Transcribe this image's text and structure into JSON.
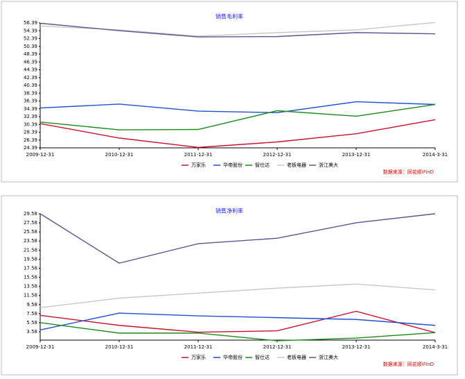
{
  "chart_data": [
    {
      "type": "line",
      "title": "销售毛利率",
      "categories": [
        "2009-12-31",
        "2010-12-31",
        "2011-12-31",
        "2012-12-31",
        "2013-12-31",
        "2014-3-31"
      ],
      "series": [
        {
          "name": "万家乐",
          "color": "#c8102e",
          "values": [
            30.6,
            26.9,
            24.5,
            25.9,
            28.0,
            31.6
          ]
        },
        {
          "name": "华帝股份",
          "color": "#1f4fd1",
          "values": [
            34.6,
            35.6,
            33.8,
            33.4,
            36.2,
            35.5
          ]
        },
        {
          "name": "智仕达",
          "color": "#1a8a1a",
          "values": [
            31.0,
            29.0,
            29.1,
            33.9,
            32.5,
            35.5
          ]
        },
        {
          "name": "老板电器",
          "color": "#c8c8c8",
          "values": [
            55.6,
            54.6,
            53.0,
            53.9,
            54.6,
            56.5
          ]
        },
        {
          "name": "浙江美大",
          "color": "#5a5490",
          "values": [
            56.3,
            54.4,
            52.8,
            52.9,
            53.9,
            53.6
          ]
        }
      ],
      "ylim": [
        24.39,
        56.39
      ],
      "yticks": [
        24.39,
        26.39,
        28.39,
        30.39,
        32.39,
        34.39,
        36.39,
        38.39,
        40.39,
        42.39,
        44.39,
        46.39,
        48.39,
        50.39,
        52.39,
        54.39,
        56.39
      ],
      "note": "数据来源：同花顺iFinD"
    },
    {
      "type": "line",
      "title": "销售净利率",
      "categories": [
        "2009-12-31",
        "2010-12-31",
        "2011-12-31",
        "2012-12-31",
        "2013-12-31",
        "2014-3-31"
      ],
      "series": [
        {
          "name": "万家乐",
          "color": "#c8102e",
          "values": [
            7.2,
            5.0,
            3.5,
            3.8,
            8.1,
            3.4
          ]
        },
        {
          "name": "华帝股份",
          "color": "#1f4fd1",
          "values": [
            4.0,
            7.7,
            7.1,
            6.7,
            6.3,
            5.0
          ]
        },
        {
          "name": "智仕达",
          "color": "#1a8a1a",
          "values": [
            5.6,
            3.3,
            3.3,
            1.6,
            2.2,
            3.4
          ]
        },
        {
          "name": "老板电器",
          "color": "#c8c8c8",
          "values": [
            8.9,
            11.0,
            12.1,
            13.2,
            14.1,
            12.8
          ]
        },
        {
          "name": "浙江美大",
          "color": "#5a5490",
          "values": [
            29.6,
            18.7,
            23.0,
            24.2,
            27.6,
            29.6
          ]
        }
      ],
      "ylim": [
        1.75,
        29.58
      ],
      "yticks": [
        3.58,
        5.58,
        7.58,
        9.58,
        11.58,
        13.58,
        15.58,
        17.58,
        19.58,
        21.58,
        23.58,
        25.58,
        27.58,
        29.58
      ],
      "note": "数据来源：同花顺iFinD"
    }
  ]
}
